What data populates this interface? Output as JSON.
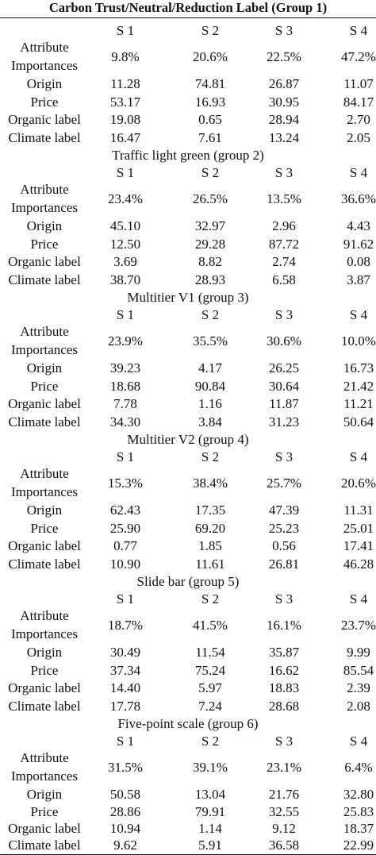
{
  "title": "Carbon Trust/Neutral/Reduction Label (Group 1)",
  "columns": [
    "S 1",
    "S 2",
    "S 3",
    "S 4"
  ],
  "row_labels": {
    "importance_line1": "Attribute",
    "importance_line2": "Importances",
    "origin": "Origin",
    "price": "Price",
    "organic": "Organic label",
    "climate": "Climate label"
  },
  "groups": [
    {
      "heading": "",
      "importances": [
        "9.8%",
        "20.6%",
        "22.5%",
        "47.2%"
      ],
      "origin": [
        "11.28",
        "74.81",
        "26.87",
        "11.07"
      ],
      "price": [
        "53.17",
        "16.93",
        "30.95",
        "84.17"
      ],
      "organic": [
        "19.08",
        "0.65",
        "28.94",
        "2.70"
      ],
      "climate": [
        "16.47",
        "7.61",
        "13.24",
        "2.05"
      ]
    },
    {
      "heading": "Traffic light green (group 2)",
      "importances": [
        "23.4%",
        "26.5%",
        "13.5%",
        "36.6%"
      ],
      "origin": [
        "45.10",
        "32.97",
        "2.96",
        "4.43"
      ],
      "price": [
        "12.50",
        "29.28",
        "87.72",
        "91.62"
      ],
      "organic": [
        "3.69",
        "8.82",
        "2.74",
        "0.08"
      ],
      "climate": [
        "38.70",
        "28.93",
        "6.58",
        "3.87"
      ]
    },
    {
      "heading": "Multitier V1 (group 3)",
      "importances": [
        "23.9%",
        "35.5%",
        "30.6%",
        "10.0%"
      ],
      "origin": [
        "39.23",
        "4.17",
        "26.25",
        "16.73"
      ],
      "price": [
        "18.68",
        "90.84",
        "30.64",
        "21.42"
      ],
      "organic": [
        "7.78",
        "1.16",
        "11.87",
        "11.21"
      ],
      "climate": [
        "34.30",
        "3.84",
        "31.23",
        "50.64"
      ]
    },
    {
      "heading": "Multitier V2 (group 4)",
      "importances": [
        "15.3%",
        "38.4%",
        "25.7%",
        "20.6%"
      ],
      "origin": [
        "62.43",
        "17.35",
        "47.39",
        "11.31"
      ],
      "price": [
        "25.90",
        "69.20",
        "25.23",
        "25.01"
      ],
      "organic": [
        "0.77",
        "1.85",
        "0.56",
        "17.41"
      ],
      "climate": [
        "10.90",
        "11.61",
        "26.81",
        "46.28"
      ]
    },
    {
      "heading": "Slide bar (group 5)",
      "importances": [
        "18.7%",
        "41.5%",
        "16.1%",
        "23.7%"
      ],
      "origin": [
        "30.49",
        "11.54",
        "35.87",
        "9.99"
      ],
      "price": [
        "37.34",
        "75.24",
        "16.62",
        "85.54"
      ],
      "organic": [
        "14.40",
        "5.97",
        "18.83",
        "2.39"
      ],
      "climate": [
        "17.78",
        "7.24",
        "28.68",
        "2.08"
      ]
    },
    {
      "heading": "Five-point scale (group 6)",
      "importances": [
        "31.5%",
        "39.1%",
        "23.1%",
        "6.4%"
      ],
      "origin": [
        "50.58",
        "13.04",
        "21.76",
        "32.80"
      ],
      "price": [
        "28.86",
        "79.91",
        "32.55",
        "25.83"
      ],
      "organic": [
        "10.94",
        "1.14",
        "9.12",
        "18.37"
      ],
      "climate": [
        "9.62",
        "5.91",
        "36.58",
        "22.99"
      ]
    }
  ]
}
